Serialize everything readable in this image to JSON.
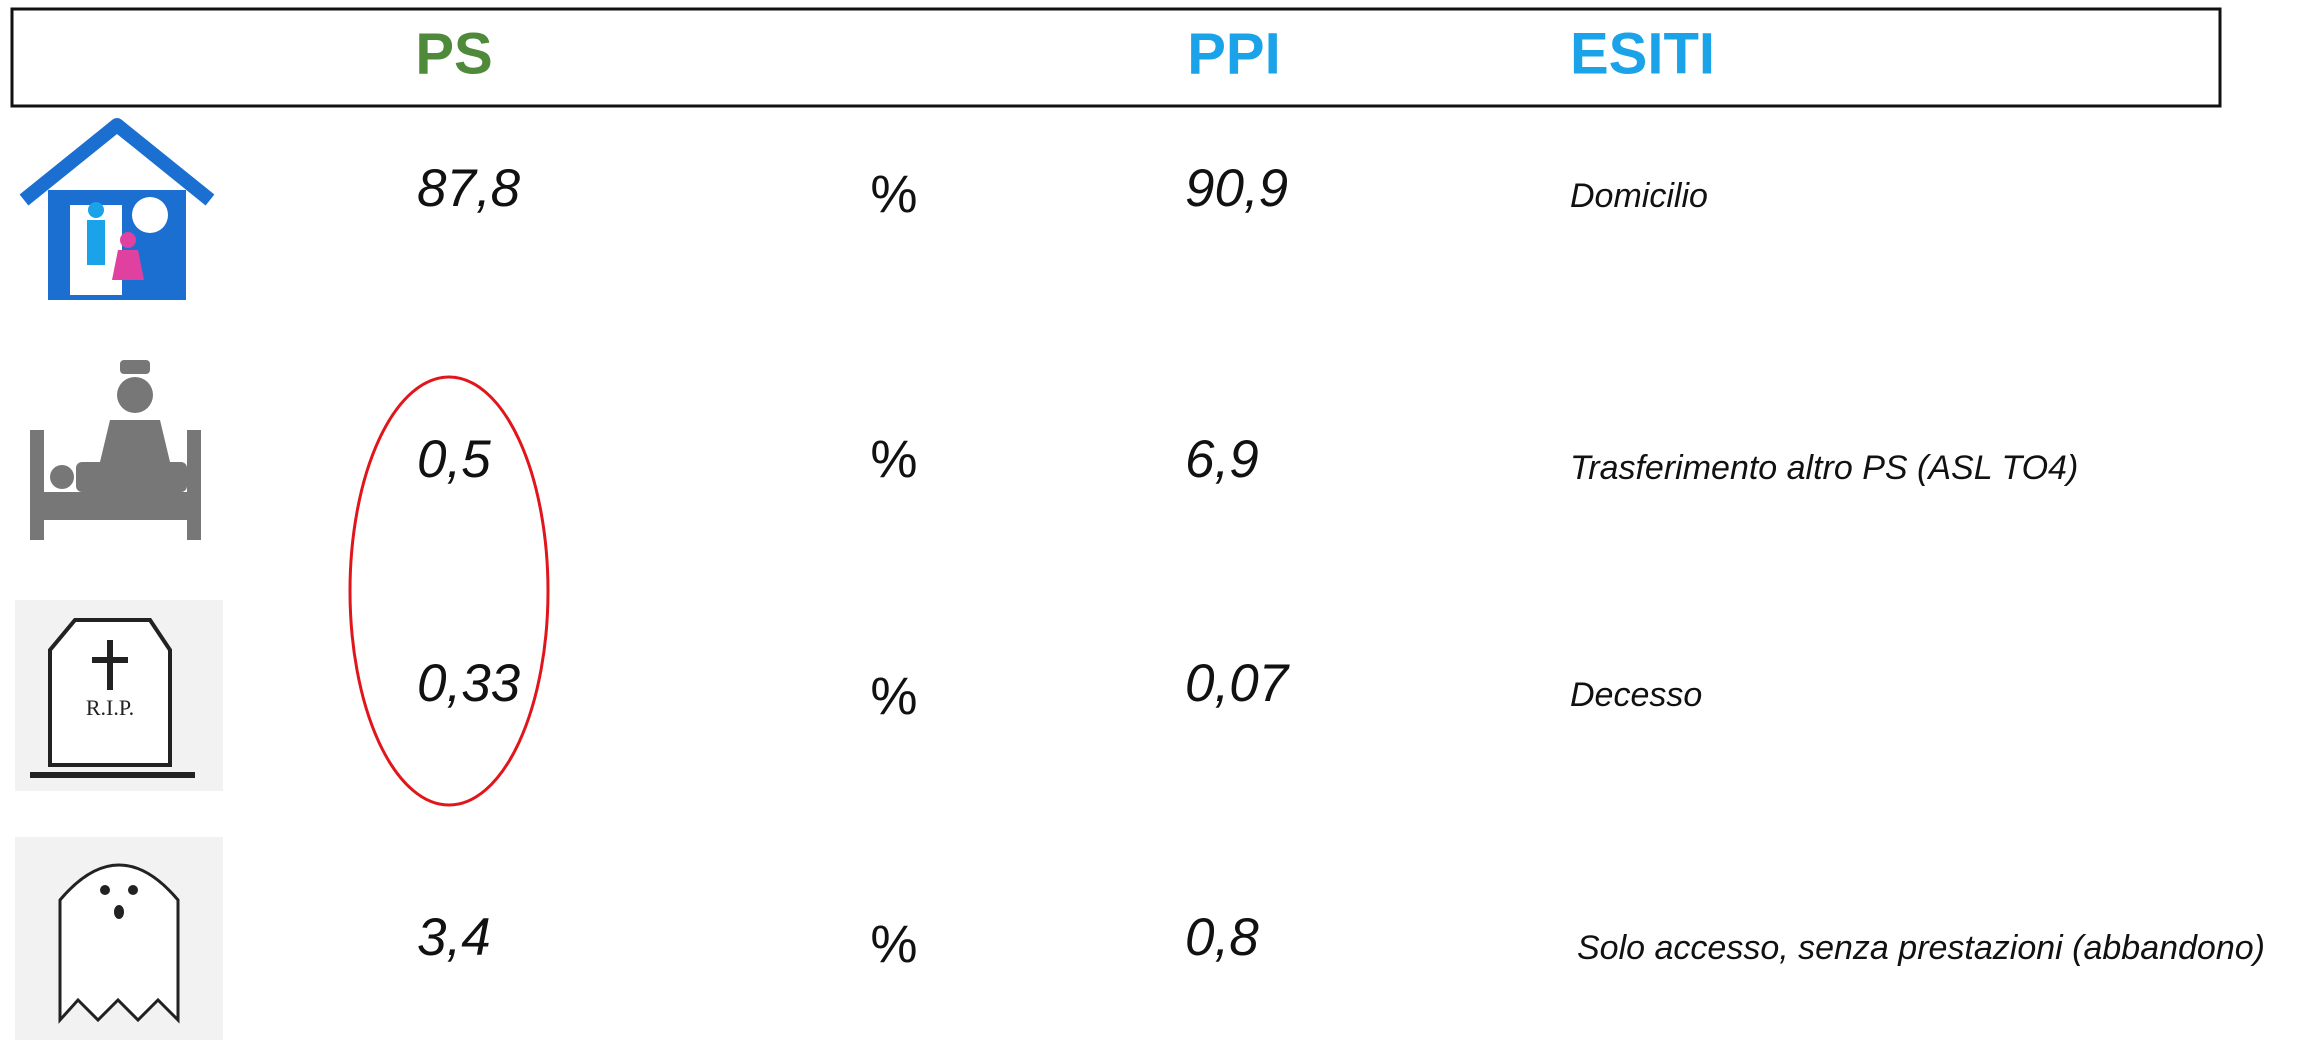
{
  "header": {
    "ps": "PS",
    "ppi": "PPI",
    "esiti": "ESITI"
  },
  "icons": {
    "tombstone": "R.I.P."
  },
  "rows": [
    {
      "ps": "87,8",
      "unit": "%",
      "ppi": "90,9",
      "esito": "Domicilio"
    },
    {
      "ps": "0,5",
      "unit": "%",
      "ppi": "6,9",
      "esito": "Trasferimento altro PS (ASL TO4)"
    },
    {
      "ps": "0,33",
      "unit": "%",
      "ppi": "0,07",
      "esito": "Decesso"
    },
    {
      "ps": "3,4",
      "unit": "%",
      "ppi": "0,8",
      "esito": "Solo accesso, senza prestazioni (abbandono)"
    }
  ]
}
